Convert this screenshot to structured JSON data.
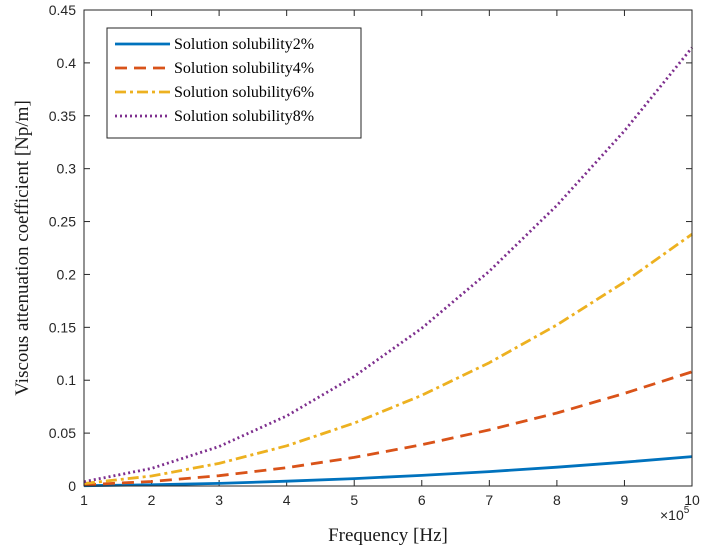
{
  "chart_data": {
    "type": "line",
    "xlabel": "Frequency [Hz]",
    "ylabel": "Viscous attenuation coefficient  [Np/m]",
    "x_exponent_base": "×10",
    "x_exponent_power": "5",
    "xlim": [
      1,
      10
    ],
    "ylim": [
      0,
      0.45
    ],
    "x_ticks": [
      1,
      2,
      3,
      4,
      5,
      6,
      7,
      8,
      9,
      10
    ],
    "x_tick_labels": [
      "1",
      "2",
      "3",
      "4",
      "5",
      "6",
      "7",
      "8",
      "9",
      "10"
    ],
    "y_ticks": [
      0,
      0.05,
      0.1,
      0.15,
      0.2,
      0.25,
      0.3,
      0.35,
      0.4,
      0.45
    ],
    "y_tick_labels": [
      "0",
      "0.05",
      "0.1",
      "0.15",
      "0.2",
      "0.25",
      "0.3",
      "0.35",
      "0.4",
      "0.45"
    ],
    "grid": false,
    "legend_position": "top-left",
    "x": [
      1,
      2,
      3,
      4,
      5,
      6,
      7,
      8,
      9,
      10
    ],
    "series": [
      {
        "name": "Solution solubility2%",
        "color": "#0072BD",
        "dash": "solid",
        "values": [
          0.0003,
          0.0011,
          0.0025,
          0.0045,
          0.007,
          0.01,
          0.0136,
          0.0178,
          0.0225,
          0.0278
        ]
      },
      {
        "name": "Solution solubility4%",
        "color": "#D95319",
        "dash": "dashed",
        "values": [
          0.0011,
          0.0043,
          0.0097,
          0.0173,
          0.027,
          0.039,
          0.053,
          0.069,
          0.0875,
          0.108
        ]
      },
      {
        "name": "Solution solubility6%",
        "color": "#EDB120",
        "dash": "dashdot",
        "values": [
          0.0024,
          0.0095,
          0.0214,
          0.038,
          0.0595,
          0.0857,
          0.1166,
          0.1523,
          0.1928,
          0.238
        ]
      },
      {
        "name": "Solution solubility8%",
        "color": "#7E2F8E",
        "dash": "dotted",
        "values": [
          0.0041,
          0.0166,
          0.0373,
          0.0663,
          0.1036,
          0.1492,
          0.2031,
          0.2653,
          0.3357,
          0.4145
        ]
      }
    ]
  }
}
